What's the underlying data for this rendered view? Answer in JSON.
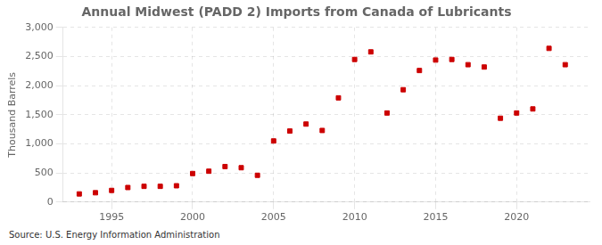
{
  "chart_data": {
    "type": "scatter",
    "title": "Annual Midwest (PADD 2) Imports from Canada of Lubricants",
    "ylabel": "Thousand Barrels",
    "source": "Source: U.S. Energy Information Administration",
    "x": [
      1993,
      1994,
      1995,
      1996,
      1997,
      1998,
      1999,
      2000,
      2001,
      2002,
      2003,
      2004,
      2005,
      2006,
      2007,
      2008,
      2009,
      2010,
      2011,
      2012,
      2013,
      2014,
      2015,
      2016,
      2017,
      2018,
      2019,
      2020,
      2021,
      2022,
      2023
    ],
    "values": [
      140,
      160,
      200,
      250,
      270,
      270,
      280,
      490,
      530,
      610,
      590,
      460,
      1050,
      1220,
      1340,
      1230,
      1790,
      2450,
      2580,
      1530,
      1930,
      2260,
      2440,
      2450,
      2360,
      2320,
      1440,
      1530,
      1600,
      2640,
      2360
    ],
    "color": "#cc0000",
    "marker": "square",
    "xlim": [
      1992,
      2024.5
    ],
    "xticks": [
      1995,
      2000,
      2005,
      2010,
      2015,
      2020
    ],
    "ylim": [
      0,
      3000
    ],
    "yticks": [
      0,
      500,
      {
        "value": 1000,
        "label": "1,000"
      },
      {
        "value": 1500,
        "label": "1,500"
      },
      {
        "value": 2000,
        "label": "2,000"
      },
      {
        "value": 2500,
        "label": "2,500"
      },
      {
        "value": 3000,
        "label": "3,000"
      }
    ],
    "grid": true
  }
}
